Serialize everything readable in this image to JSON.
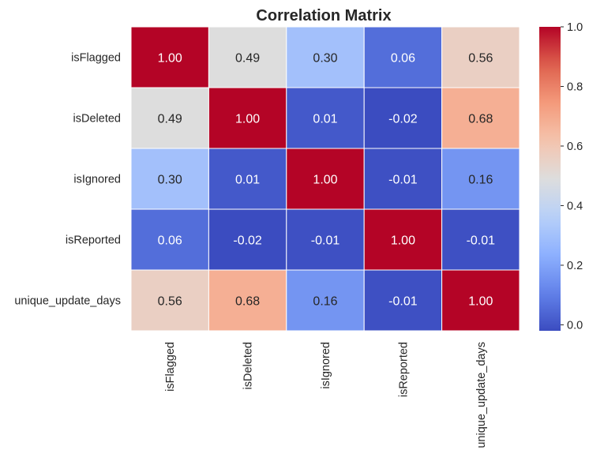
{
  "chart_data": {
    "type": "heatmap",
    "title": "Correlation Matrix",
    "xlabel": "",
    "ylabel": "",
    "x_categories": [
      "isFlagged",
      "isDeleted",
      "isIgnored",
      "isReported",
      "unique_update_days"
    ],
    "y_categories": [
      "isFlagged",
      "isDeleted",
      "isIgnored",
      "isReported",
      "unique_update_days"
    ],
    "values": [
      [
        1.0,
        0.49,
        0.3,
        0.06,
        0.56
      ],
      [
        0.49,
        1.0,
        0.01,
        -0.02,
        0.68
      ],
      [
        0.3,
        0.01,
        1.0,
        -0.01,
        0.16
      ],
      [
        0.06,
        -0.02,
        -0.01,
        1.0,
        -0.01
      ],
      [
        0.56,
        0.68,
        0.16,
        -0.01,
        1.0
      ]
    ],
    "annotations": [
      [
        "1.00",
        "0.49",
        "0.30",
        "0.06",
        "0.56"
      ],
      [
        "0.49",
        "1.00",
        "0.01",
        "-0.02",
        "0.68"
      ],
      [
        "0.30",
        "0.01",
        "1.00",
        "-0.01",
        "0.16"
      ],
      [
        "0.06",
        "-0.02",
        "-0.01",
        "1.00",
        "-0.01"
      ],
      [
        "0.56",
        "0.68",
        "0.16",
        "-0.01",
        "1.00"
      ]
    ],
    "colormap": "coolwarm",
    "vmin": -0.02,
    "vmax": 1.0,
    "colorbar": {
      "ticks": [
        0.0,
        0.2,
        0.4,
        0.6,
        0.8,
        1.0
      ],
      "tick_labels": [
        "0.0",
        "0.2",
        "0.4",
        "0.6",
        "0.8",
        "1.0"
      ]
    },
    "grid": false,
    "cell_border_color": "#ffffff",
    "colorbar_position": "right"
  }
}
